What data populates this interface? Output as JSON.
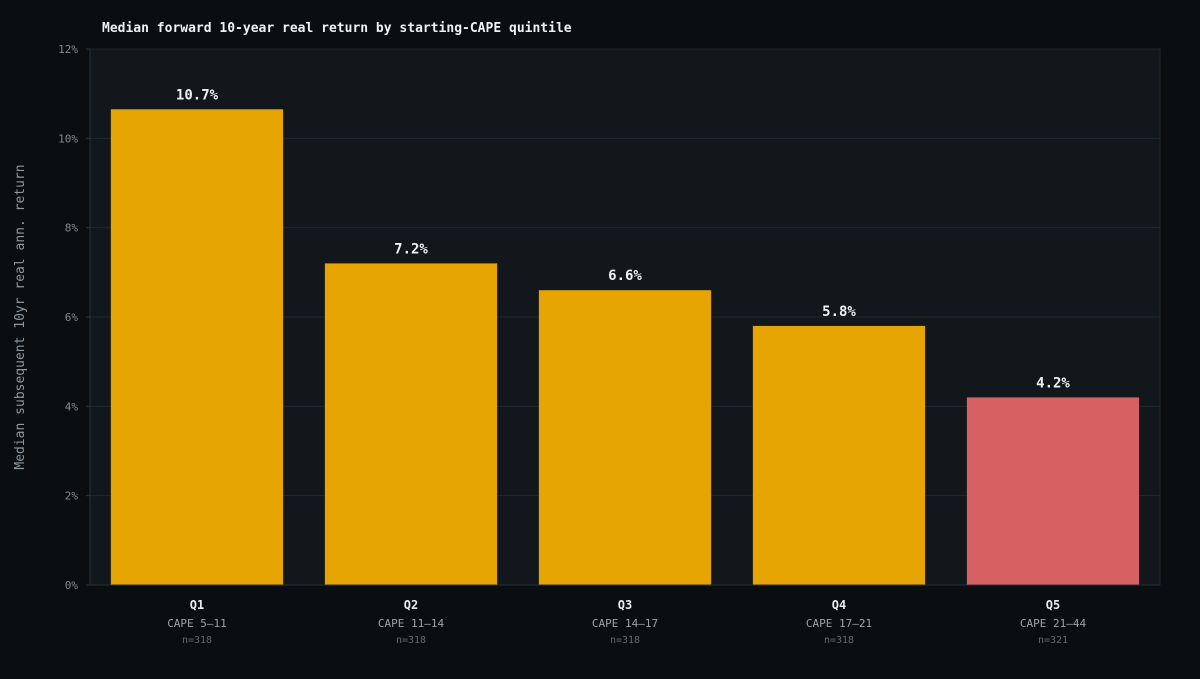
{
  "chart_data": {
    "type": "bar",
    "title": "Median forward 10-year real return by starting-CAPE quintile",
    "ylabel": "Median subsequent 10yr real ann. return",
    "xlabel": "",
    "ylim": [
      0,
      12
    ],
    "yticks": [
      0,
      2,
      4,
      6,
      8,
      10,
      12
    ],
    "ytick_labels": [
      "0%",
      "2%",
      "4%",
      "6%",
      "8%",
      "10%",
      "12%"
    ],
    "grid": true,
    "legend": "none",
    "categories": [
      "Q1",
      "Q2",
      "Q3",
      "Q4",
      "Q5"
    ],
    "subcategories": [
      "CAPE 5–11",
      "CAPE 11–14",
      "CAPE 14–17",
      "CAPE 17–21",
      "CAPE 21–44"
    ],
    "counts": [
      "n=318",
      "n=318",
      "n=318",
      "n=318",
      "n=321"
    ],
    "values": [
      10.65,
      7.2,
      6.6,
      5.8,
      4.2
    ],
    "value_labels": [
      "10.7%",
      "7.2%",
      "6.6%",
      "5.8%",
      "4.2%"
    ],
    "bar_colors": [
      "#e6a400",
      "#e6a400",
      "#e6a400",
      "#e6a400",
      "#d66163"
    ]
  },
  "colors": {
    "page_background": "#0b0e10",
    "plot_background": "#11171b",
    "grid": "#1f272c",
    "axis": "#2a3338",
    "highlight": "#d66163",
    "bar": "#e6a400"
  }
}
